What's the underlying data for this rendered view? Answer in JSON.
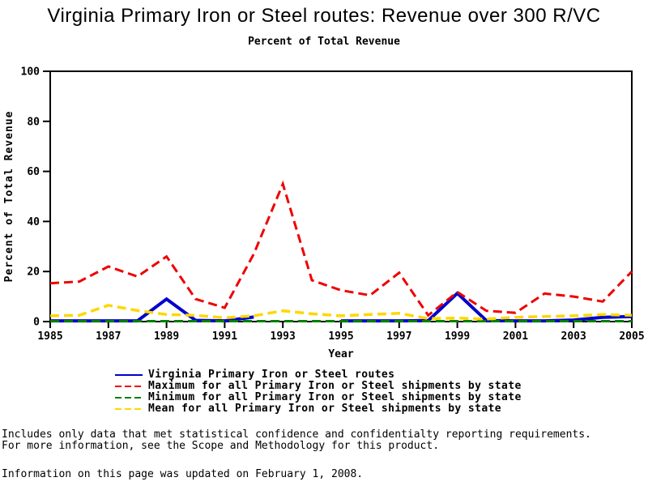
{
  "chart_data": {
    "type": "line",
    "title": "Virginia Primary Iron or Steel routes: Revenue over 300 R/VC",
    "subtitle": "Percent of Total Revenue",
    "xlabel": "Year",
    "ylabel": "Percent of Total Revenue",
    "xlim": [
      1985,
      2005
    ],
    "ylim": [
      0,
      100
    ],
    "xticks": [
      1985,
      1987,
      1989,
      1991,
      1993,
      1995,
      1997,
      1999,
      2001,
      2003,
      2005
    ],
    "yticks": [
      0,
      20,
      40,
      60,
      80,
      100
    ],
    "grid": false,
    "legend_position": "bottom",
    "x": [
      1985,
      1986,
      1987,
      1988,
      1989,
      1990,
      1991,
      1992,
      1993,
      1994,
      1995,
      1996,
      1997,
      1998,
      1999,
      2000,
      2001,
      2002,
      2003,
      2004,
      2005
    ],
    "series": [
      {
        "name": "Virginia Primary Iron or Steel routes",
        "color": "#0000CC",
        "line_style": "solid",
        "line_width": 4,
        "values": [
          0.3,
          0.3,
          0.3,
          0.3,
          9,
          0.5,
          0.3,
          1.8,
          null,
          null,
          0.3,
          0.3,
          0.3,
          0.4,
          11.3,
          0.4,
          0.3,
          0.3,
          0.6,
          1.7,
          2
        ]
      },
      {
        "name": "Maximum for all Primary Iron or Steel shipments by state",
        "color": "#EE0000",
        "line_style": "dashed",
        "line_width": 3,
        "values": [
          15.3,
          16,
          22,
          18,
          26,
          9,
          5.5,
          27,
          55,
          16.5,
          12.5,
          10.5,
          19.5,
          2.5,
          11.8,
          4.3,
          3.5,
          11.2,
          10,
          8,
          20
        ]
      },
      {
        "name": "Minimum for all Primary Iron or Steel shipments by state",
        "color": "#008000",
        "line_style": "dashed",
        "line_width": 3,
        "values": [
          0.15,
          0.15,
          0.15,
          0.15,
          0.15,
          0.15,
          0.15,
          0.15,
          0.15,
          0.15,
          0.15,
          0.15,
          0.15,
          0.15,
          0.15,
          0.15,
          0.15,
          0.15,
          0.15,
          0.15,
          0.15
        ]
      },
      {
        "name": "Mean for all Primary Iron or Steel shipments by state",
        "color": "#FFD700",
        "line_style": "dashed",
        "line_width": 3.5,
        "values": [
          2.3,
          2.5,
          6.5,
          4.4,
          2.8,
          2.5,
          1.5,
          2.3,
          4.3,
          3.1,
          2.3,
          2.8,
          3.3,
          1.2,
          1.4,
          1.0,
          1.7,
          2.0,
          2.3,
          2.8,
          2.5
        ]
      }
    ]
  },
  "footer": {
    "line1": "Includes only data that met statistical confidence and confidentialty reporting requirements.",
    "line2": "For more information, see the Scope and Methodology for this product.",
    "updated": "Information on this page was updated on February 1, 2008."
  }
}
